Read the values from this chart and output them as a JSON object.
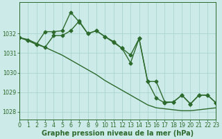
{
  "background_color": "#cceae7",
  "grid_color": "#aad4d0",
  "line_color": "#2d6a2d",
  "xlim": [
    0,
    23
  ],
  "ylim": [
    1027.6,
    1033.6
  ],
  "yticks": [
    1028,
    1029,
    1030,
    1031,
    1032
  ],
  "ytick_labels": [
    "1028",
    "1029",
    "1030",
    "1031",
    "1032"
  ],
  "xticks": [
    0,
    1,
    2,
    3,
    4,
    5,
    6,
    7,
    8,
    9,
    10,
    11,
    12,
    13,
    14,
    15,
    16,
    17,
    18,
    19,
    20,
    21,
    22,
    23
  ],
  "xlabel": "Graphe pression niveau de la mer (hPa)",
  "series1_x": [
    0,
    1,
    2,
    3,
    4,
    5,
    6,
    7,
    8,
    9,
    10,
    11,
    12,
    13,
    14,
    15,
    16,
    17,
    18,
    19,
    20,
    21,
    22,
    23
  ],
  "series1_y": [
    1031.8,
    1031.7,
    1031.5,
    1031.3,
    1031.1,
    1030.9,
    1030.65,
    1030.4,
    1030.15,
    1029.9,
    1029.6,
    1029.35,
    1029.1,
    1028.85,
    1028.6,
    1028.35,
    1028.2,
    1028.15,
    1028.1,
    1028.05,
    1028.05,
    1028.1,
    1028.15,
    1028.2
  ],
  "series2_x": [
    0,
    1,
    2,
    3,
    4,
    5,
    6,
    7,
    8,
    9,
    10,
    11,
    12,
    13,
    14,
    15,
    16,
    17,
    18,
    19,
    20,
    21,
    22,
    23
  ],
  "series2_y": [
    1031.8,
    1031.65,
    1031.45,
    1032.1,
    1032.1,
    1032.15,
    1033.1,
    1032.6,
    1032.0,
    1032.15,
    1031.85,
    1031.6,
    1031.25,
    1030.9,
    1031.75,
    1029.55,
    1029.55,
    1028.5,
    1028.5,
    1028.85,
    1028.4,
    1028.85,
    1028.85,
    1028.45
  ],
  "series3_x": [
    0,
    1,
    2,
    3,
    4,
    5,
    6,
    7,
    8,
    9,
    10,
    11,
    12,
    13,
    14,
    15,
    16,
    17,
    18,
    19,
    20,
    21,
    22,
    23
  ],
  "series3_y": [
    1031.8,
    1031.65,
    1031.45,
    1031.3,
    1031.9,
    1031.9,
    1032.15,
    1032.65,
    1032.0,
    1032.15,
    1031.85,
    1031.55,
    1031.25,
    1030.5,
    1031.75,
    1029.55,
    1028.7,
    1028.45,
    1028.5,
    1028.85,
    1028.4,
    1028.85,
    1028.85,
    1028.45
  ],
  "title_fontsize": 7,
  "tick_fontsize": 5.8,
  "marker_size": 2.5,
  "line_width": 1.0
}
